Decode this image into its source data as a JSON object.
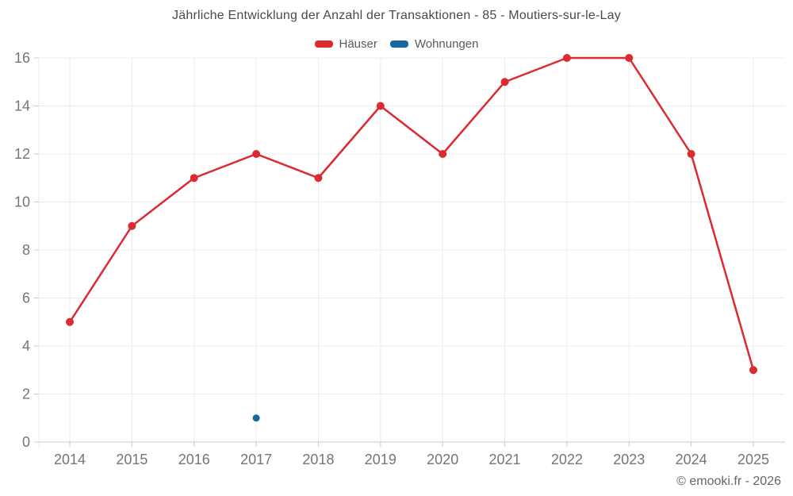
{
  "title": "Jährliche Entwicklung der Anzahl der Transaktionen - 85 - Moutiers-sur-le-Lay",
  "legend": [
    {
      "label": "Häuser",
      "color": "#dc2a30"
    },
    {
      "label": "Wohnungen",
      "color": "#17689e"
    }
  ],
  "footer": "© emooki.fr - 2026",
  "colors": {
    "grid": "#ececec",
    "axis": "#c9c9c9",
    "tick": "#c9c9c9",
    "tick_label": "#757575",
    "title_text": "#4a4a4a",
    "footer_text": "#666666"
  },
  "chart_data": {
    "type": "line",
    "title": "Jährliche Entwicklung der Anzahl der Transaktionen - 85 - Moutiers-sur-le-Lay",
    "categories": [
      "2014",
      "2015",
      "2016",
      "2017",
      "2018",
      "2019",
      "2020",
      "2021",
      "2022",
      "2023",
      "2024",
      "2025"
    ],
    "series": [
      {
        "name": "Häuser",
        "color": "#dc2a30",
        "values": [
          5,
          9,
          11,
          12,
          11,
          14,
          12,
          15,
          16,
          16,
          12,
          3
        ]
      },
      {
        "name": "Wohnungen",
        "color": "#17689e",
        "values": [
          null,
          null,
          null,
          1,
          null,
          null,
          null,
          null,
          null,
          null,
          null,
          null
        ]
      }
    ],
    "xlabel": "",
    "ylabel": "",
    "ylim": [
      0,
      16
    ],
    "ytick_step": 2,
    "grid": true,
    "legend_position": "top",
    "marker": "circle",
    "annotation": "© emooki.fr - 2026"
  }
}
